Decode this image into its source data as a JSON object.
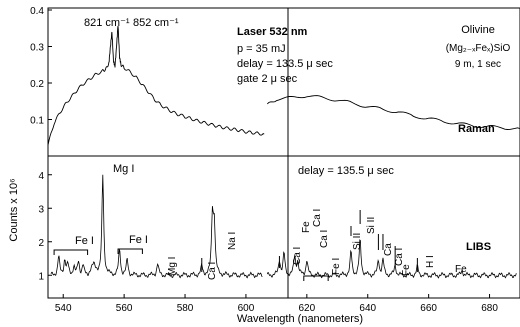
{
  "chart_data": [
    {
      "type": "line",
      "panel": "upper",
      "xlabel": "",
      "ylabel": "Counts x 10⁶",
      "ylim": [
        0,
        0.4
      ],
      "yticks": [
        "0.4",
        "0.3",
        "0.2",
        "0.1"
      ],
      "grid": false,
      "segments": [
        {
          "x": [
            535,
            537,
            539,
            541,
            543,
            545,
            547,
            549,
            551,
            553,
            554,
            555,
            555.5,
            556,
            556.5,
            557,
            557.5,
            558,
            558.5,
            559,
            560,
            562,
            564,
            566,
            568,
            570,
            572,
            574,
            576,
            578,
            580,
            582,
            584,
            586,
            588,
            590,
            592,
            594,
            596,
            598,
            600,
            602,
            604,
            606
          ],
          "y": [
            0.03,
            0.09,
            0.12,
            0.145,
            0.165,
            0.185,
            0.2,
            0.213,
            0.225,
            0.233,
            0.238,
            0.255,
            0.3,
            0.34,
            0.26,
            0.245,
            0.3,
            0.36,
            0.27,
            0.25,
            0.242,
            0.23,
            0.215,
            0.195,
            0.175,
            0.155,
            0.14,
            0.13,
            0.12,
            0.113,
            0.108,
            0.102,
            0.097,
            0.092,
            0.087,
            0.083,
            0.079,
            0.076,
            0.073,
            0.07,
            0.066,
            0.064,
            0.062,
            0.06
          ]
        },
        {
          "x": [
            607,
            610,
            615,
            620,
            625,
            630,
            635,
            640,
            645,
            650,
            655,
            660,
            665,
            670,
            675,
            680,
            685,
            690
          ],
          "y": [
            0.14,
            0.155,
            0.16,
            0.165,
            0.16,
            0.153,
            0.145,
            0.135,
            0.128,
            0.12,
            0.11,
            0.102,
            0.095,
            0.088,
            0.083,
            0.08,
            0.077,
            0.075
          ]
        }
      ],
      "annotations": {
        "peak1": "821 cm⁻¹",
        "peak2": "852 cm⁻¹",
        "laser": "Laser 532 nm",
        "p": "p = 35 mJ",
        "delay": "delay = 133.5 μ sec",
        "gate": "gate 2 μ sec",
        "mineral": "Olivine",
        "formula": "(Mg₂₋ₓFeₓ)SiO",
        "dist": "9 m, 1 sec",
        "tag": "Raman"
      }
    },
    {
      "type": "line",
      "panel": "lower",
      "xlabel": "Wavelength (nanometers)",
      "ylabel": "",
      "xlim": [
        535,
        690
      ],
      "xticks": [
        "540",
        "560",
        "580",
        "600",
        "620",
        "640",
        "660",
        "680"
      ],
      "yticks": [
        "1",
        "2",
        "3",
        "4"
      ],
      "ylim": [
        0.5,
        4.2
      ],
      "grid": false,
      "peaks": [
        [
          538.5,
          1.55
        ],
        [
          540.5,
          1.45
        ],
        [
          541.5,
          1.3
        ],
        [
          543.5,
          1.25
        ],
        [
          545,
          1.4
        ],
        [
          546.5,
          1.3
        ],
        [
          553,
          4.0
        ],
        [
          558.5,
          1.75
        ],
        [
          561,
          1.45
        ],
        [
          571,
          1.35
        ],
        [
          585.5,
          1.25
        ],
        [
          589,
          2.75
        ],
        [
          589.6,
          2.45
        ],
        [
          611,
          1.45
        ],
        [
          612.5,
          1.65
        ],
        [
          616,
          1.55
        ],
        [
          617,
          1.4
        ],
        [
          620,
          1.45
        ],
        [
          634.5,
          1.7
        ],
        [
          637.5,
          2.05
        ],
        [
          643.5,
          1.45
        ],
        [
          645,
          1.45
        ],
        [
          649,
          1.3
        ],
        [
          656.3,
          1.25
        ],
        [
          671,
          1.15
        ]
      ],
      "annotations": {
        "MgI_main": "Mg I",
        "FeI_a": "Fe I",
        "FeI_b": "Fe I",
        "MgI_small": "Mg I",
        "CaI_585": "Ca I",
        "NaI": "Na I",
        "delay": "delay = 135.5 μ sec",
        "Ca_611": "Ca I",
        "Fe_612": "Fe",
        "CaI_616": "Ca I",
        "CaI_619": "Ca I",
        "FeI_620": "Fe I",
        "SiII_634": "Si II",
        "SiII_637": "Si II",
        "Ca_643": "Ca",
        "CaI_645": "Ca I",
        "Fe_649": "Fe",
        "HI": "H I",
        "Fe_671": "Fe",
        "tag": "LIBS"
      }
    }
  ]
}
